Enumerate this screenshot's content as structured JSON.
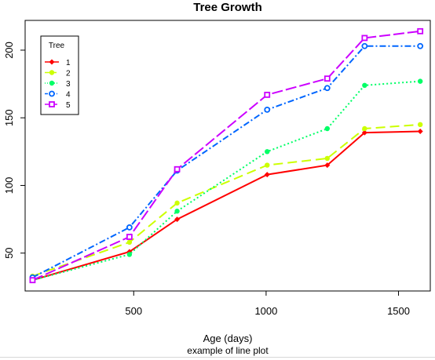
{
  "chart_data": {
    "type": "line",
    "title": "Tree Growth",
    "xlabel": "Age (days)",
    "sub": "example of line plot",
    "ylabel": "",
    "xlim": [
      90,
      1620
    ],
    "ylim": [
      22,
      222
    ],
    "xticks": [
      500,
      1000,
      1500
    ],
    "yticks": [
      50,
      100,
      150,
      200
    ],
    "grid": false,
    "legend": {
      "title": "Tree",
      "position": "top-left"
    },
    "x": [
      118,
      484,
      664,
      1004,
      1231,
      1372,
      1582
    ],
    "series": [
      {
        "name": "1",
        "values": [
          30,
          51,
          75,
          108,
          115,
          139,
          140
        ],
        "color": "#ff0000",
        "dash": "",
        "marker": "diamond"
      },
      {
        "name": "2",
        "values": [
          33,
          58,
          87,
          115,
          120,
          142,
          145
        ],
        "color": "#ccff00",
        "dash": "12 6",
        "marker": "circle"
      },
      {
        "name": "3",
        "values": [
          30,
          49,
          81,
          125,
          142,
          174,
          177
        ],
        "color": "#00ff66",
        "dash": "2 3",
        "marker": "circle"
      },
      {
        "name": "4",
        "values": [
          32,
          69,
          111,
          156,
          172,
          203,
          203
        ],
        "color": "#0066ff",
        "dash": "8 3 2 3",
        "marker": "circle-open"
      },
      {
        "name": "5",
        "values": [
          30,
          62,
          112,
          167,
          179,
          209,
          214
        ],
        "color": "#cc00ff",
        "dash": "14 4",
        "marker": "square-open"
      }
    ]
  }
}
